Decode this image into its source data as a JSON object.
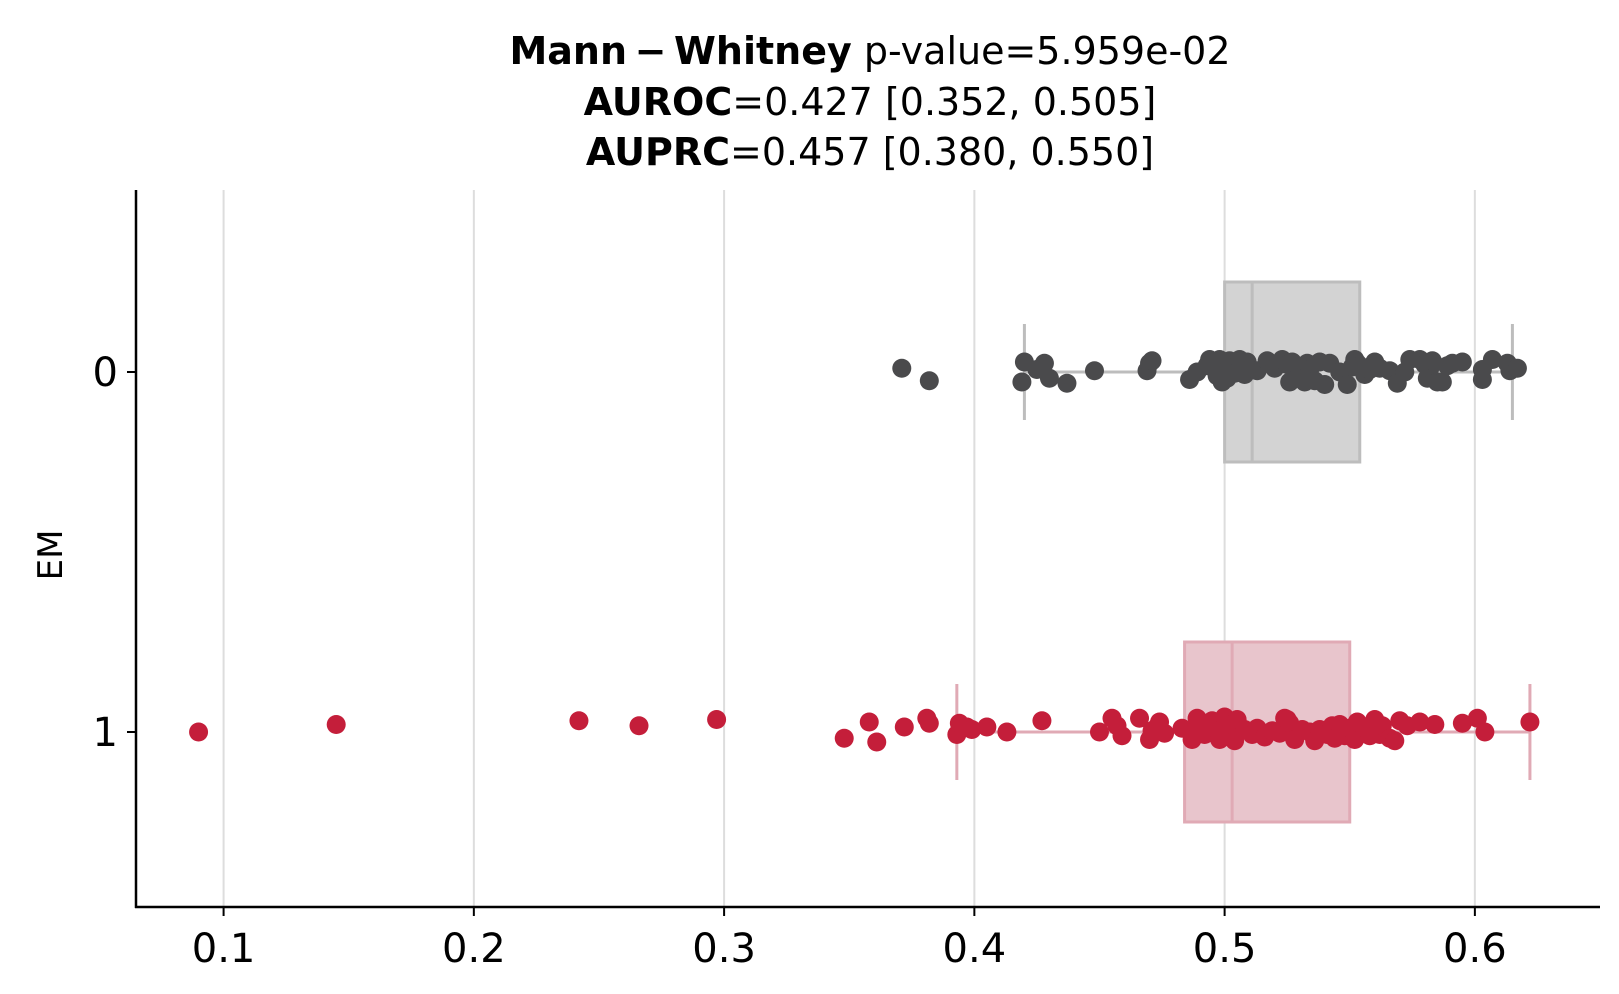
{
  "chart_data": {
    "type": "scatter",
    "subtype": "horizontal box plot with jittered strip points",
    "title": {
      "line1": {
        "bold": "Mann − Whitney",
        "rest": " p-value=5.959e-02"
      },
      "line2": {
        "bold": "AUROC",
        "rest": "=0.427 [0.352, 0.505]"
      },
      "line3": {
        "bold": "AUPRC",
        "rest": "=0.457 [0.380, 0.550]"
      }
    },
    "xlabel": "",
    "ylabel": "EM",
    "xlim": [
      0.065,
      0.65
    ],
    "x_ticks": [
      0.1,
      0.2,
      0.3,
      0.4,
      0.5,
      0.6
    ],
    "x_tick_labels": [
      "0.1",
      "0.2",
      "0.3",
      "0.4",
      "0.5",
      "0.6"
    ],
    "grid": "vertical lines at x ticks",
    "categories": [
      "0",
      "1"
    ],
    "colors": {
      "group0": "#4a4a4c",
      "group1": "#c41e3a",
      "box0": "#d3d3d3",
      "box1": "#e8c5cc",
      "grid": "#dddddd"
    },
    "series": [
      {
        "category": "0",
        "box": {
          "whisker_low": 0.42,
          "q1": 0.5,
          "median": 0.511,
          "q3": 0.554,
          "whisker_high": 0.615
        },
        "points": [
          [
            0.371,
            0.03
          ],
          [
            0.382,
            -0.07
          ],
          [
            0.419,
            -0.08
          ],
          [
            0.42,
            0.08
          ],
          [
            0.425,
            0.02
          ],
          [
            0.428,
            0.07
          ],
          [
            0.43,
            -0.05
          ],
          [
            0.437,
            -0.09
          ],
          [
            0.448,
            0.01
          ],
          [
            0.469,
            0.01
          ],
          [
            0.47,
            0.07
          ],
          [
            0.471,
            0.09
          ],
          [
            0.486,
            -0.06
          ],
          [
            0.489,
            0.0
          ],
          [
            0.493,
            0.05
          ],
          [
            0.494,
            0.1
          ],
          [
            0.496,
            0.04
          ],
          [
            0.497,
            -0.03
          ],
          [
            0.498,
            0.1
          ],
          [
            0.499,
            -0.08
          ],
          [
            0.5,
            0.07
          ],
          [
            0.5,
            0.0
          ],
          [
            0.501,
            -0.05
          ],
          [
            0.502,
            0.09
          ],
          [
            0.503,
            0.03
          ],
          [
            0.504,
            -0.01
          ],
          [
            0.506,
            0.1
          ],
          [
            0.507,
            0.05
          ],
          [
            0.508,
            -0.02
          ],
          [
            0.509,
            0.08
          ],
          [
            0.51,
            0.02
          ],
          [
            0.513,
            0.01
          ],
          [
            0.517,
            0.09
          ],
          [
            0.52,
            0.03
          ],
          [
            0.523,
            0.1
          ],
          [
            0.525,
            0.06
          ],
          [
            0.526,
            -0.08
          ],
          [
            0.527,
            0.08
          ],
          [
            0.53,
            0.03
          ],
          [
            0.531,
            0.0
          ],
          [
            0.532,
            -0.08
          ],
          [
            0.533,
            0.07
          ],
          [
            0.534,
            0.02
          ],
          [
            0.536,
            -0.07
          ],
          [
            0.538,
            0.08
          ],
          [
            0.54,
            -0.1
          ],
          [
            0.542,
            0.07
          ],
          [
            0.546,
            0.0
          ],
          [
            0.549,
            -0.1
          ],
          [
            0.551,
            0.04
          ],
          [
            0.552,
            0.1
          ],
          [
            0.553,
            0.07
          ],
          [
            0.554,
            0.05
          ],
          [
            0.556,
            -0.02
          ],
          [
            0.558,
            0.02
          ],
          [
            0.56,
            0.08
          ],
          [
            0.562,
            0.03
          ],
          [
            0.566,
            0.01
          ],
          [
            0.569,
            -0.09
          ],
          [
            0.572,
            0.0
          ],
          [
            0.574,
            0.1
          ],
          [
            0.578,
            0.1
          ],
          [
            0.58,
            0.06
          ],
          [
            0.581,
            -0.05
          ],
          [
            0.582,
            0.03
          ],
          [
            0.583,
            0.09
          ],
          [
            0.585,
            -0.08
          ],
          [
            0.587,
            -0.08
          ],
          [
            0.589,
            0.05
          ],
          [
            0.591,
            0.07
          ],
          [
            0.595,
            0.08
          ],
          [
            0.603,
            0.02
          ],
          [
            0.603,
            -0.06
          ],
          [
            0.607,
            0.1
          ],
          [
            0.613,
            0.07
          ],
          [
            0.614,
            0.01
          ],
          [
            0.617,
            0.03
          ]
        ]
      },
      {
        "category": "1",
        "box": {
          "whisker_low": 0.393,
          "q1": 0.484,
          "median": 0.503,
          "q3": 0.55,
          "whisker_high": 0.622
        },
        "points": [
          [
            0.09,
            0.0
          ],
          [
            0.145,
            0.06
          ],
          [
            0.242,
            0.09
          ],
          [
            0.266,
            0.05
          ],
          [
            0.297,
            0.1
          ],
          [
            0.348,
            -0.05
          ],
          [
            0.358,
            0.08
          ],
          [
            0.361,
            -0.08
          ],
          [
            0.372,
            0.04
          ],
          [
            0.381,
            0.11
          ],
          [
            0.382,
            0.07
          ],
          [
            0.393,
            -0.02
          ],
          [
            0.394,
            0.07
          ],
          [
            0.397,
            0.04
          ],
          [
            0.399,
            0.02
          ],
          [
            0.405,
            0.04
          ],
          [
            0.413,
            0.0
          ],
          [
            0.427,
            0.09
          ],
          [
            0.45,
            0.0
          ],
          [
            0.455,
            0.11
          ],
          [
            0.457,
            0.05
          ],
          [
            0.459,
            -0.03
          ],
          [
            0.466,
            0.11
          ],
          [
            0.47,
            -0.06
          ],
          [
            0.471,
            0.01
          ],
          [
            0.473,
            0.04
          ],
          [
            0.474,
            0.08
          ],
          [
            0.476,
            -0.01
          ],
          [
            0.483,
            0.03
          ],
          [
            0.487,
            -0.06
          ],
          [
            0.489,
            0.11
          ],
          [
            0.49,
            0.03
          ],
          [
            0.491,
            0.07
          ],
          [
            0.492,
            -0.02
          ],
          [
            0.494,
            0.04
          ],
          [
            0.495,
            0.09
          ],
          [
            0.497,
            0.05
          ],
          [
            0.498,
            -0.06
          ],
          [
            0.499,
            0.02
          ],
          [
            0.5,
            0.12
          ],
          [
            0.501,
            0.08
          ],
          [
            0.502,
            -0.04
          ],
          [
            0.503,
            0.06
          ],
          [
            0.504,
            -0.07
          ],
          [
            0.505,
            0.1
          ],
          [
            0.508,
            0.02
          ],
          [
            0.511,
            -0.02
          ],
          [
            0.513,
            0.03
          ],
          [
            0.516,
            -0.04
          ],
          [
            0.519,
            0.01
          ],
          [
            0.522,
            -0.01
          ],
          [
            0.524,
            0.11
          ],
          [
            0.525,
            0.1
          ],
          [
            0.526,
            0.07
          ],
          [
            0.528,
            -0.06
          ],
          [
            0.531,
            0.02
          ],
          [
            0.534,
            0.0
          ],
          [
            0.536,
            -0.07
          ],
          [
            0.538,
            0.02
          ],
          [
            0.541,
            -0.02
          ],
          [
            0.543,
            0.05
          ],
          [
            0.544,
            -0.05
          ],
          [
            0.546,
            0.06
          ],
          [
            0.548,
            -0.03
          ],
          [
            0.55,
            0.03
          ],
          [
            0.552,
            -0.06
          ],
          [
            0.553,
            0.08
          ],
          [
            0.556,
            0.03
          ],
          [
            0.558,
            -0.03
          ],
          [
            0.56,
            0.1
          ],
          [
            0.562,
            -0.02
          ],
          [
            0.563,
            0.05
          ],
          [
            0.566,
            -0.05
          ],
          [
            0.568,
            -0.07
          ],
          [
            0.57,
            0.09
          ],
          [
            0.573,
            0.05
          ],
          [
            0.578,
            0.08
          ],
          [
            0.584,
            0.06
          ],
          [
            0.595,
            0.07
          ],
          [
            0.601,
            0.11
          ],
          [
            0.604,
            0.0
          ],
          [
            0.622,
            0.08
          ]
        ]
      }
    ]
  }
}
